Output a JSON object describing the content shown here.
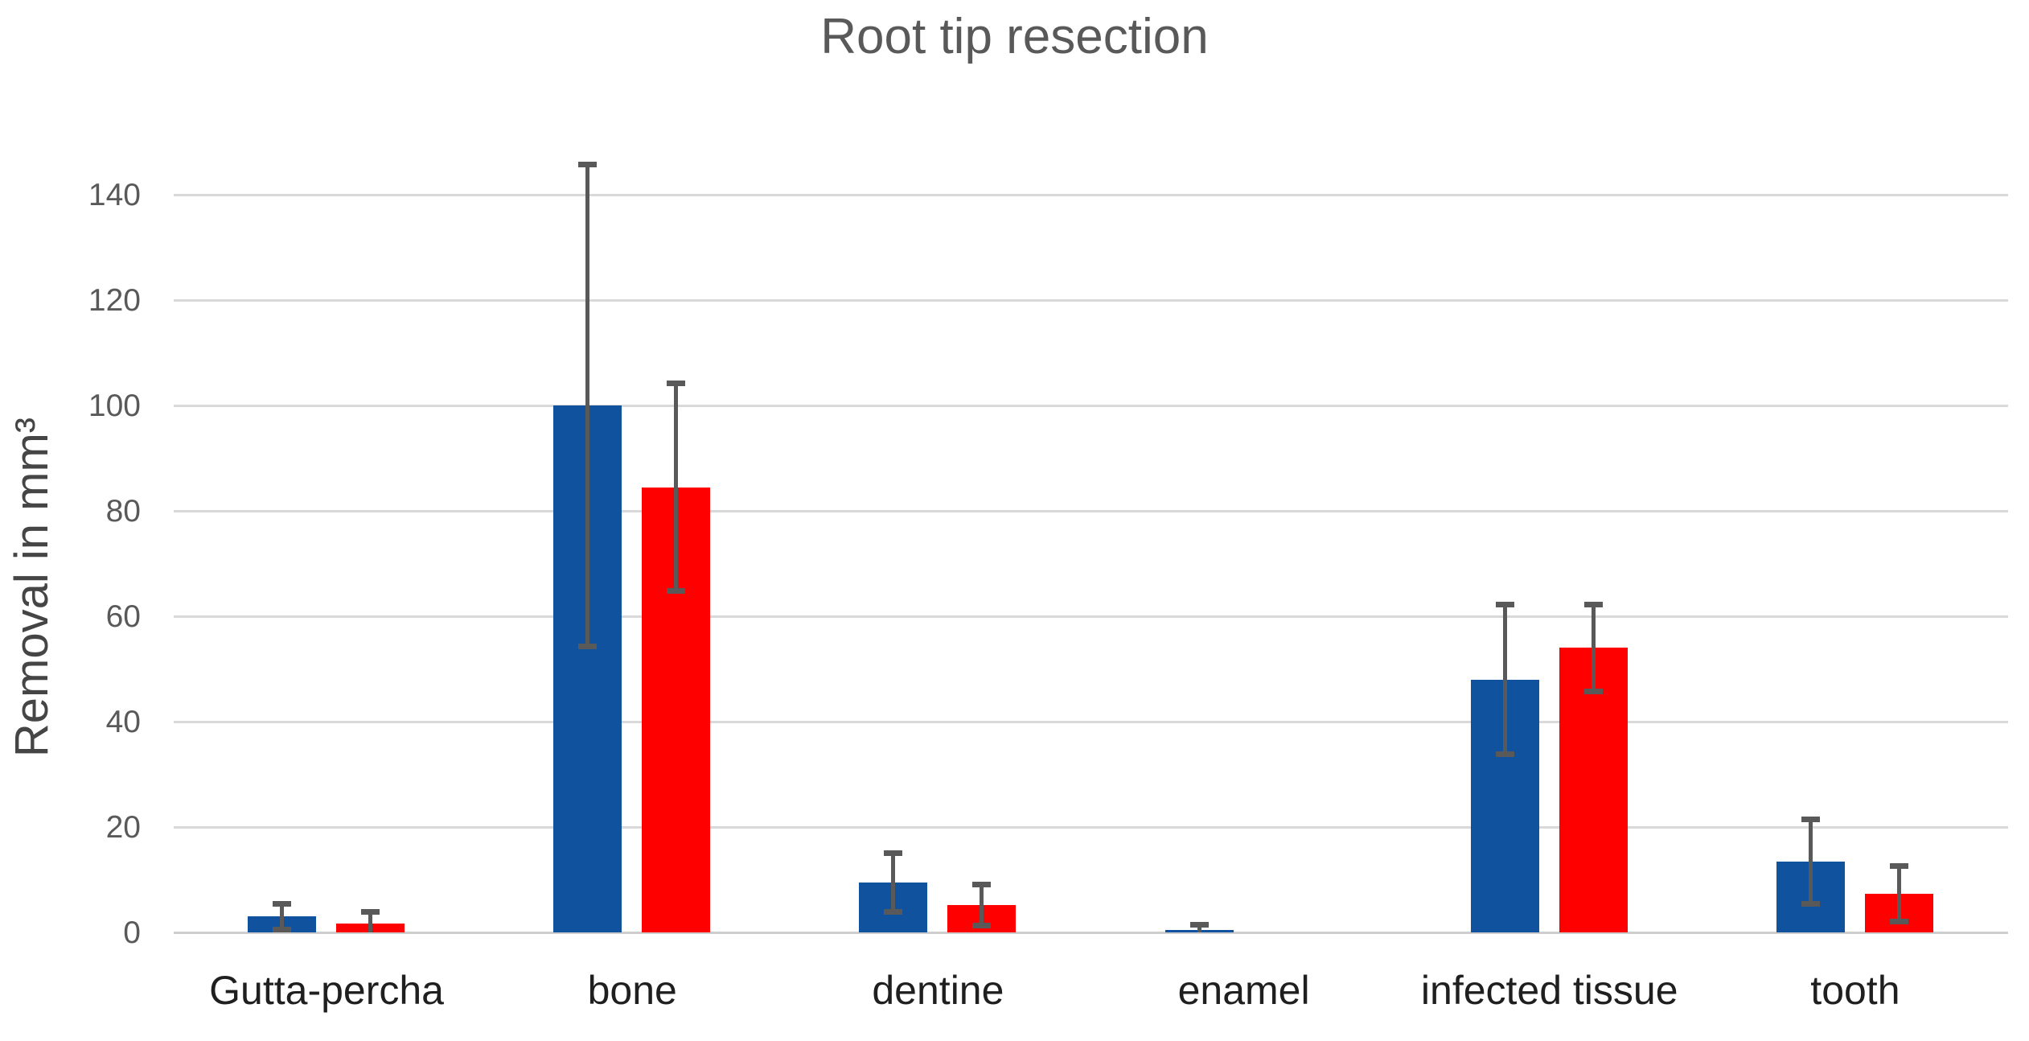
{
  "title": "Root tip resection",
  "y_axis": {
    "label": "Removal in mm³"
  },
  "chart_data": {
    "type": "bar",
    "title": "Root tip resection",
    "ylabel": "Removal in mm³",
    "xlabel": "",
    "categories": [
      "Gutta-percha",
      "bone",
      "dentine",
      "enamel",
      "infected tissue",
      "tooth"
    ],
    "series": [
      {
        "name": "series-blue",
        "color": "#10529E",
        "values": [
          3.0,
          100.0,
          9.5,
          0.4,
          48.0,
          13.5
        ],
        "errors": [
          2.2,
          45.5,
          5.3,
          0.75,
          14.0,
          7.8
        ]
      },
      {
        "name": "series-red",
        "color": "#FF0000",
        "values": [
          1.7,
          84.5,
          5.2,
          0.0,
          54.0,
          7.3
        ],
        "errors": [
          1.9,
          19.5,
          3.6,
          0.0,
          8.0,
          5.0
        ]
      }
    ],
    "yticks": [
      0,
      20,
      40,
      60,
      80,
      100,
      120,
      140
    ],
    "ylim": [
      0,
      150
    ],
    "grid": true,
    "legend": "none",
    "error_bar_color": "#595959",
    "gridline_color": "#D9D9D9",
    "background": "#FFFFFF"
  }
}
